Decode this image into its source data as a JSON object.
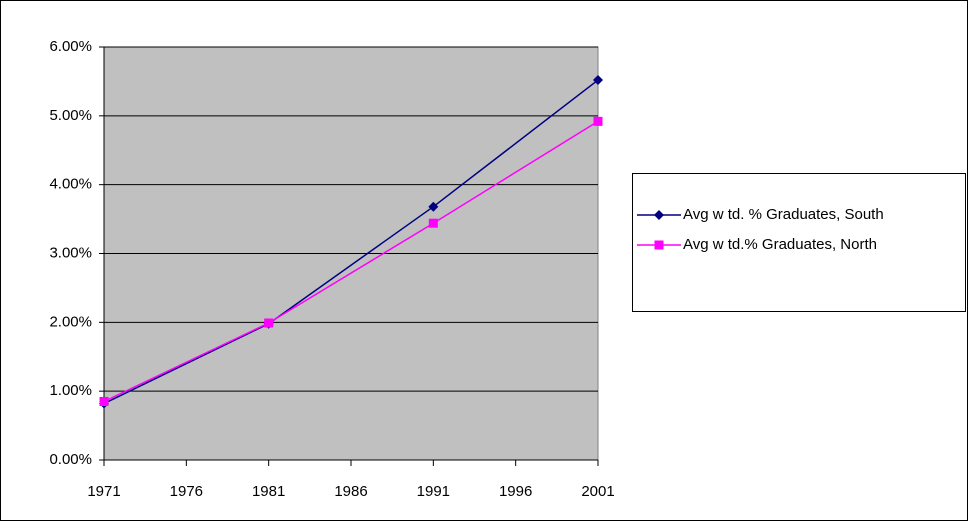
{
  "chart_data": {
    "type": "line",
    "x": [
      1971,
      1981,
      1991,
      2001
    ],
    "series": [
      {
        "name": "Avg w td. % Graduates, South",
        "color": "#000080",
        "marker": "diamond",
        "values": [
          0.82,
          1.98,
          3.68,
          5.52
        ]
      },
      {
        "name": "Avg w td.% Graduates, North",
        "color": "#ff00ff",
        "marker": "square",
        "values": [
          0.85,
          1.99,
          3.44,
          4.92
        ]
      }
    ],
    "xlim": [
      1971,
      2001
    ],
    "xticks": [
      1971,
      1976,
      1981,
      1986,
      1991,
      1996,
      2001
    ],
    "ylim": [
      0,
      6
    ],
    "yticks": [
      {
        "value": 0,
        "label": "0.00%"
      },
      {
        "value": 1,
        "label": "1.00%"
      },
      {
        "value": 2,
        "label": "2.00%"
      },
      {
        "value": 3,
        "label": "3.00%"
      },
      {
        "value": 4,
        "label": "4.00%"
      },
      {
        "value": 5,
        "label": "5.00%"
      },
      {
        "value": 6,
        "label": "6.00%"
      }
    ],
    "grid": true,
    "plot_background": "#c0c0c0",
    "legend": "right"
  }
}
